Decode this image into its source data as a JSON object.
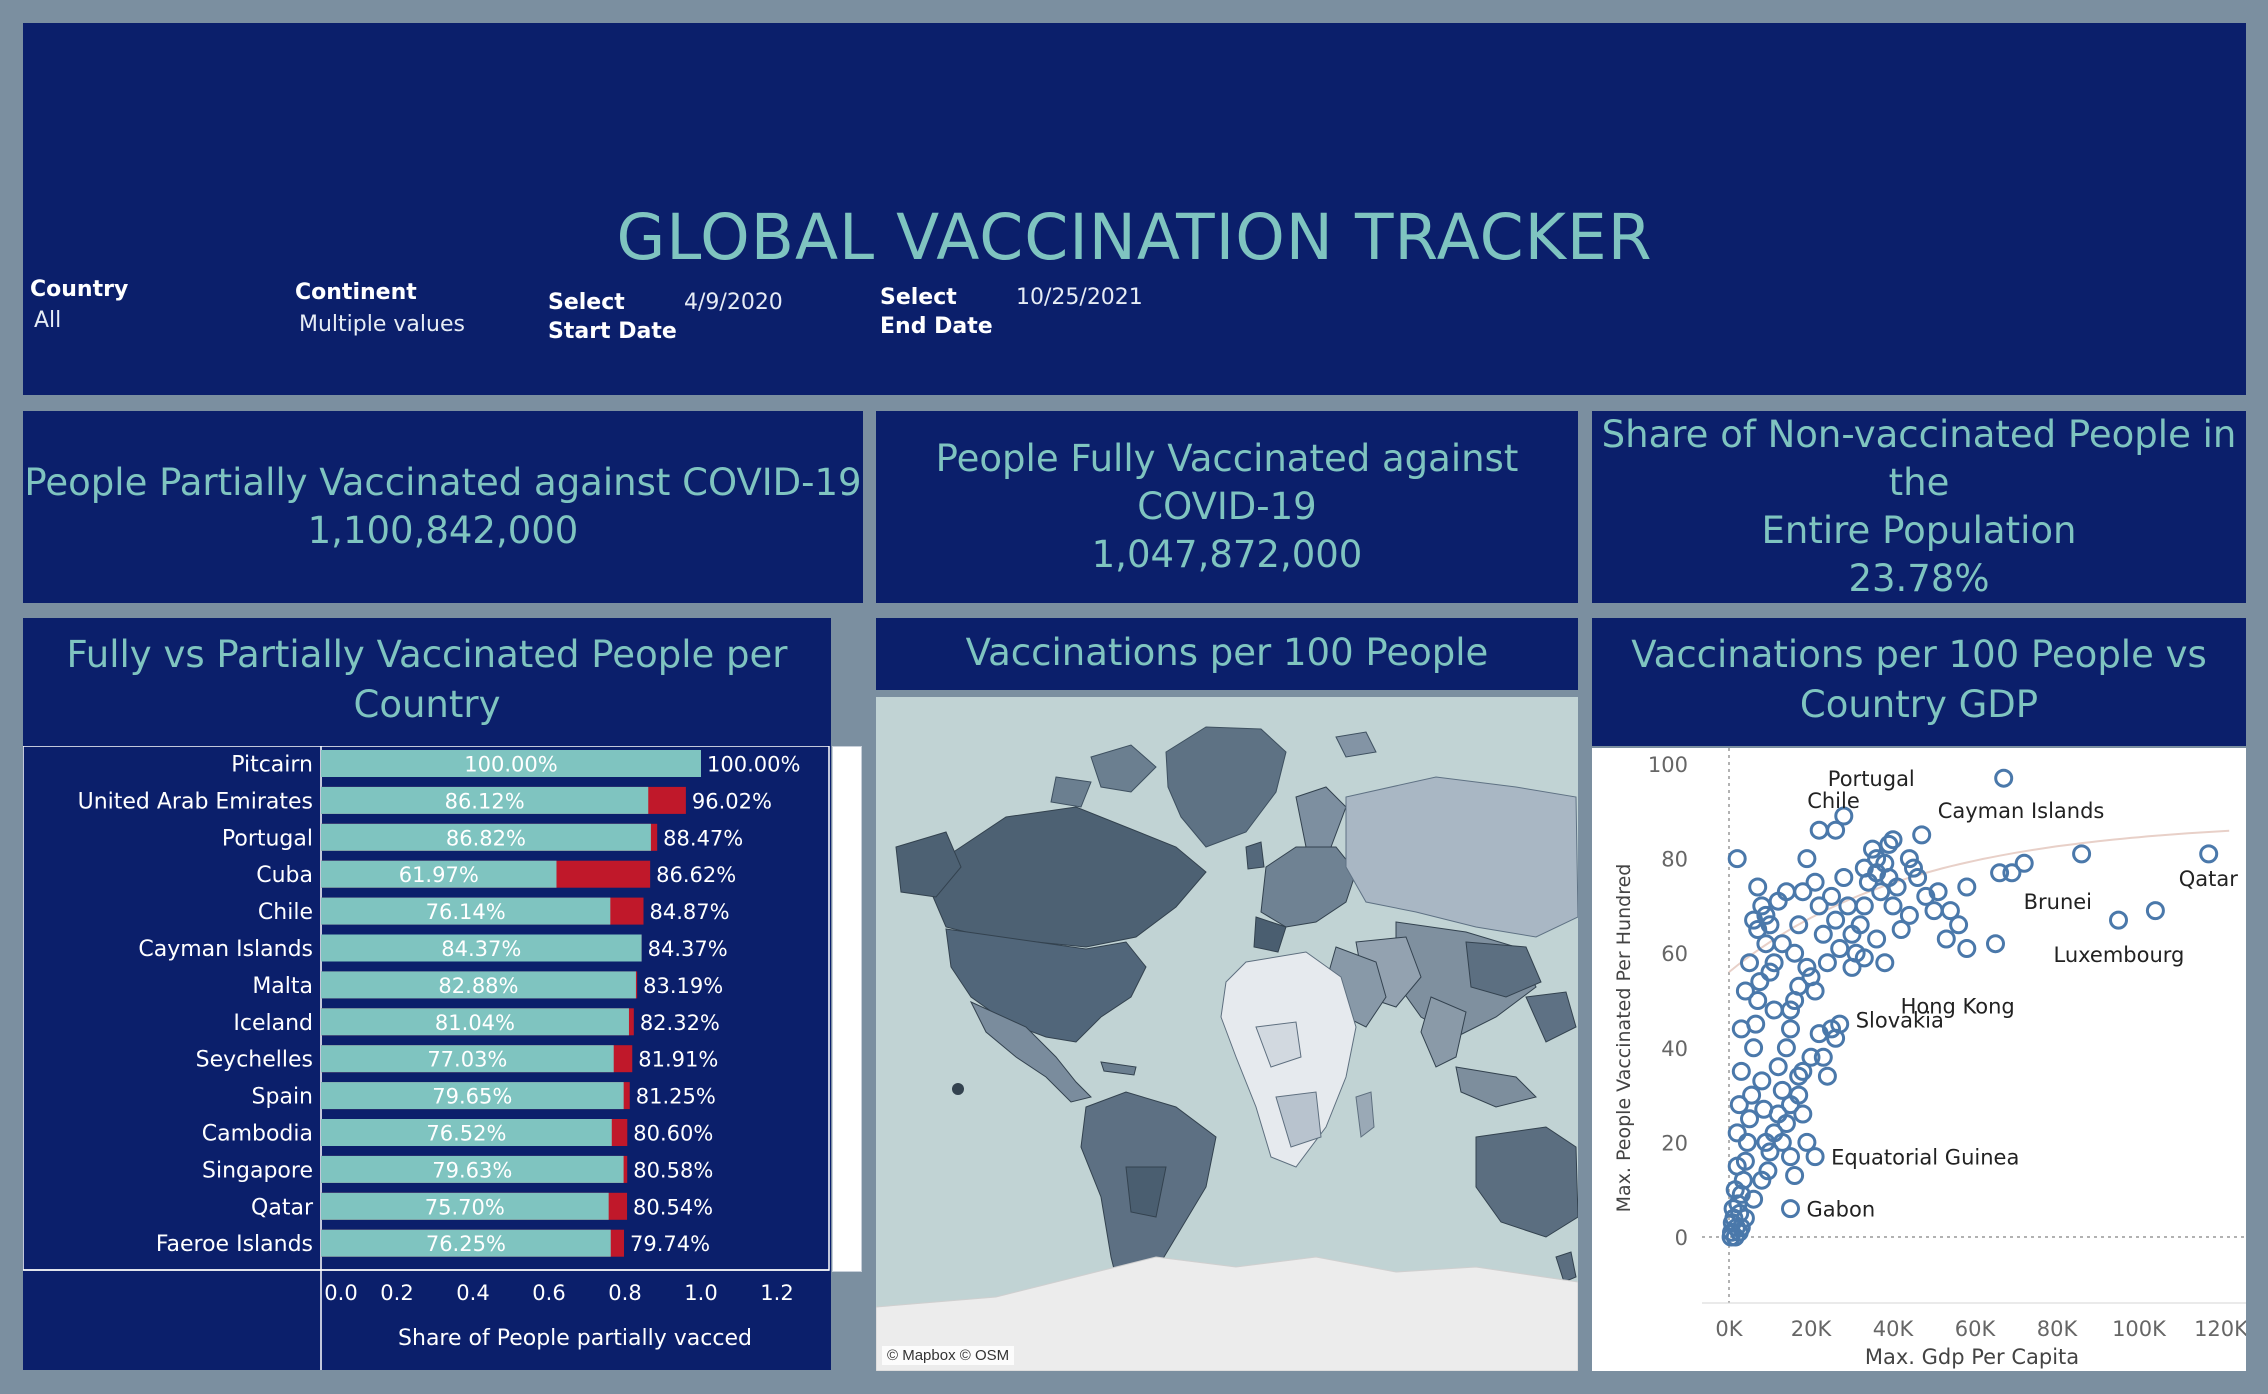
{
  "header": {
    "title": "GLOBAL VACCINATION TRACKER",
    "filters": {
      "country_label": "Country",
      "country_value": "All",
      "continent_label": "Continent",
      "continent_value": "Multiple values",
      "start_label_1": "Select",
      "start_label_2": "Start Date",
      "start_value": "4/9/2020",
      "end_label_1": "Select",
      "end_label_2": "End Date",
      "end_value": "10/25/2021"
    }
  },
  "kpis": {
    "partial": {
      "line1": "People Partially Vaccinated against COVID-19",
      "value": "1,100,842,000"
    },
    "full": {
      "line1": "People Fully Vaccinated against",
      "line2": "COVID-19",
      "value": "1,047,872,000"
    },
    "nonvacc": {
      "line1": "Share of Non-vaccinated People in the",
      "line2": "Entire Population",
      "value": "23.78%"
    }
  },
  "colors": {
    "panel": "#0b1f6b",
    "accent_teal": "#7fc4c0",
    "partial_red": "#c0182a",
    "scatter_blue": "#4a78aa",
    "background": "#7b8fa0"
  },
  "bar_section": {
    "title_line1": "Fully vs Partially Vaccinated People per",
    "title_line2": "Country"
  },
  "map_section": {
    "title": "Vaccinations per 100 People",
    "attribution": "© Mapbox © OSM"
  },
  "scatter_section": {
    "title_line1": "Vaccinations per 100 People vs",
    "title_line2": "Country GDP"
  },
  "chart_data": [
    {
      "type": "bar",
      "categories": [
        "Pitcairn",
        "United Arab Emirates",
        "Portugal",
        "Cuba",
        "Chile",
        "Cayman Islands",
        "Malta",
        "Iceland",
        "Seychelles",
        "Spain",
        "Cambodia",
        "Singapore",
        "Qatar",
        "Faeroe Islands"
      ],
      "series": [
        {
          "name": "Fully vaccinated",
          "values": [
            1.0,
            0.8612,
            0.8682,
            0.6197,
            0.7614,
            0.8437,
            0.8288,
            0.8104,
            0.7703,
            0.7965,
            0.7652,
            0.7963,
            0.757,
            0.7625
          ]
        },
        {
          "name": "Partially vaccinated",
          "values": [
            1.0,
            0.9602,
            0.8847,
            0.8662,
            0.8487,
            0.8437,
            0.8319,
            0.8232,
            0.8191,
            0.8125,
            0.806,
            0.8058,
            0.8054,
            0.7974
          ]
        }
      ],
      "inner_labels": [
        "100.00%",
        "86.12%",
        "86.82%",
        "61.97%",
        "76.14%",
        "84.37%",
        "82.88%",
        "81.04%",
        "77.03%",
        "79.65%",
        "76.52%",
        "79.63%",
        "75.70%",
        "76.25%"
      ],
      "outer_labels": [
        "100.00%",
        "96.02%",
        "88.47%",
        "86.62%",
        "84.87%",
        "84.37%",
        "83.19%",
        "82.32%",
        "81.91%",
        "81.25%",
        "80.60%",
        "80.58%",
        "80.54%",
        "79.74%"
      ],
      "xlabel": "Share of People partially vacced",
      "xlim": [
        0,
        1.2
      ],
      "xticks": [
        "0.0",
        "0.2",
        "0.4",
        "0.6",
        "0.8",
        "1.0",
        "1.2"
      ],
      "orientation": "horizontal"
    },
    {
      "type": "scatter",
      "xlabel": "Max. Gdp Per Capita",
      "ylabel": "Max. People Vaccinated Per Hundred",
      "xlim": [
        -5000,
        125000
      ],
      "ylim": [
        -5,
        103
      ],
      "xticks": [
        0,
        20000,
        40000,
        60000,
        80000,
        100000,
        120000
      ],
      "xtick_labels": [
        "0K",
        "20K",
        "40K",
        "60K",
        "80K",
        "100K",
        "120K"
      ],
      "yticks": [
        0,
        20,
        40,
        60,
        80,
        100
      ],
      "annotations": [
        {
          "text": "Chile",
          "x": 22000,
          "y": 86
        },
        {
          "text": "Portugal",
          "x": 28000,
          "y": 89
        },
        {
          "text": "Cayman Islands",
          "x": 67000,
          "y": 97
        },
        {
          "text": "Brunei",
          "x": 86000,
          "y": 81
        },
        {
          "text": "Qatar",
          "x": 117000,
          "y": 81
        },
        {
          "text": "Luxembourg",
          "x": 95000,
          "y": 67
        },
        {
          "text": "Hong Kong",
          "x": 56000,
          "y": 62
        },
        {
          "text": "Slovakia",
          "x": 27000,
          "y": 46
        },
        {
          "text": "Equatorial Guinea",
          "x": 21000,
          "y": 17
        },
        {
          "text": "Gabon",
          "x": 15000,
          "y": 6
        }
      ],
      "points": [
        [
          117000,
          81
        ],
        [
          104000,
          69
        ],
        [
          95000,
          67
        ],
        [
          86000,
          81
        ],
        [
          72000,
          79
        ],
        [
          69000,
          77
        ],
        [
          66000,
          77
        ],
        [
          67000,
          97
        ],
        [
          65000,
          62
        ],
        [
          58000,
          74
        ],
        [
          58000,
          61
        ],
        [
          56000,
          66
        ],
        [
          54000,
          69
        ],
        [
          51000,
          73
        ],
        [
          48000,
          72
        ],
        [
          46000,
          76
        ],
        [
          44000,
          68
        ],
        [
          45000,
          78
        ],
        [
          42000,
          65
        ],
        [
          41000,
          74
        ],
        [
          40000,
          70
        ],
        [
          39000,
          76
        ],
        [
          38000,
          79
        ],
        [
          37000,
          73
        ],
        [
          36000,
          77
        ],
        [
          35000,
          82
        ],
        [
          34000,
          75
        ],
        [
          33000,
          70
        ],
        [
          32000,
          66
        ],
        [
          31000,
          60
        ],
        [
          30000,
          64
        ],
        [
          29000,
          70
        ],
        [
          28000,
          76
        ],
        [
          27000,
          61
        ],
        [
          26000,
          67
        ],
        [
          25000,
          72
        ],
        [
          24000,
          58
        ],
        [
          23000,
          64
        ],
        [
          22000,
          70
        ],
        [
          21000,
          75
        ],
        [
          20000,
          55
        ],
        [
          19000,
          80
        ],
        [
          18000,
          73
        ],
        [
          17000,
          66
        ],
        [
          16000,
          60
        ],
        [
          28000,
          89
        ],
        [
          22000,
          86
        ],
        [
          26000,
          86
        ],
        [
          40000,
          84
        ],
        [
          47000,
          85
        ],
        [
          44000,
          80
        ],
        [
          39000,
          83
        ],
        [
          36000,
          80
        ],
        [
          33000,
          78
        ],
        [
          27000,
          45
        ],
        [
          25000,
          44
        ],
        [
          22000,
          43
        ],
        [
          20000,
          38
        ],
        [
          18000,
          35
        ],
        [
          17000,
          30
        ],
        [
          15000,
          28
        ],
        [
          14000,
          24
        ],
        [
          13000,
          20
        ],
        [
          12000,
          36
        ],
        [
          11000,
          48
        ],
        [
          10000,
          56
        ],
        [
          9000,
          62
        ],
        [
          8000,
          70
        ],
        [
          7000,
          74
        ],
        [
          6000,
          67
        ],
        [
          5000,
          58
        ],
        [
          4000,
          52
        ],
        [
          3000,
          44
        ],
        [
          3000,
          35
        ],
        [
          2500,
          28
        ],
        [
          2000,
          22
        ],
        [
          2000,
          15
        ],
        [
          1500,
          10
        ],
        [
          1000,
          6
        ],
        [
          800,
          3
        ],
        [
          600,
          1
        ],
        [
          500,
          0
        ],
        [
          1200,
          4
        ],
        [
          1800,
          2
        ],
        [
          2200,
          7
        ],
        [
          2600,
          5
        ],
        [
          3000,
          9
        ],
        [
          3500,
          12
        ],
        [
          4000,
          16
        ],
        [
          4500,
          20
        ],
        [
          5000,
          25
        ],
        [
          5500,
          30
        ],
        [
          6000,
          40
        ],
        [
          6500,
          45
        ],
        [
          7000,
          50
        ],
        [
          7500,
          54
        ],
        [
          8000,
          33
        ],
        [
          8500,
          27
        ],
        [
          9000,
          20
        ],
        [
          9500,
          14
        ],
        [
          10000,
          18
        ],
        [
          11000,
          22
        ],
        [
          12000,
          26
        ],
        [
          13000,
          31
        ],
        [
          14000,
          40
        ],
        [
          15000,
          44
        ],
        [
          16000,
          50
        ],
        [
          17000,
          34
        ],
        [
          18000,
          26
        ],
        [
          19000,
          20
        ],
        [
          15000,
          17
        ],
        [
          16000,
          13
        ],
        [
          8000,
          12
        ],
        [
          6000,
          8
        ],
        [
          4000,
          4
        ],
        [
          3000,
          2
        ],
        [
          2500,
          1
        ],
        [
          1500,
          0
        ],
        [
          2000,
          80
        ],
        [
          7000,
          65
        ],
        [
          9000,
          68
        ],
        [
          10000,
          66
        ],
        [
          12000,
          71
        ],
        [
          14000,
          73
        ],
        [
          11000,
          58
        ],
        [
          13000,
          62
        ],
        [
          15000,
          48
        ],
        [
          17000,
          53
        ],
        [
          19000,
          57
        ],
        [
          21000,
          52
        ],
        [
          23000,
          38
        ],
        [
          24000,
          34
        ],
        [
          26000,
          42
        ],
        [
          30000,
          57
        ],
        [
          33000,
          59
        ],
        [
          36000,
          63
        ],
        [
          38000,
          58
        ],
        [
          50000,
          69
        ],
        [
          53000,
          63
        ],
        [
          21000,
          17
        ],
        [
          15000,
          6
        ]
      ]
    }
  ]
}
